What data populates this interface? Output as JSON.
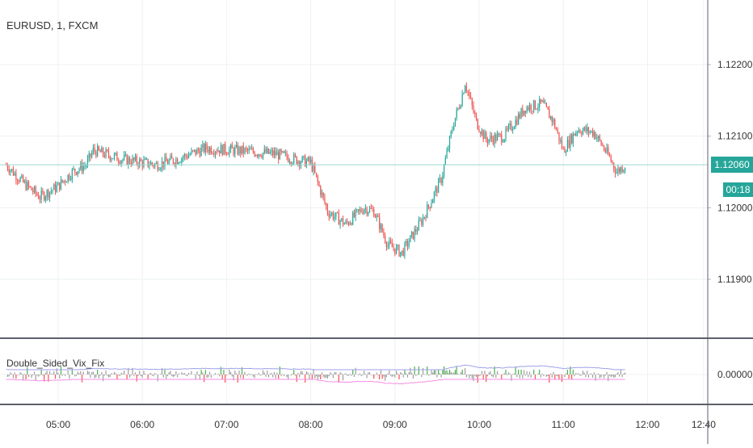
{
  "symbol_title": "EURUSD, 1, FXCM",
  "indicator_title": "Double_Sided_Vix_Fix",
  "current_price_label": "1.12060",
  "countdown_label": "00:18",
  "colors": {
    "up": "#26a69a",
    "down": "#ef5350",
    "price_line": "#9ad8d0",
    "grid": "#eef0f3",
    "separator": "#5d606b",
    "band_upper": "#9fa2e8",
    "band_lower": "#f48fe4",
    "hist_gray": "#9e9e9e",
    "hist_red": "#ff4d4d",
    "hist_green": "#4caf50"
  },
  "chart_data": [
    {
      "type": "candlestick",
      "title": "EURUSD, 1, FXCM",
      "x_tick_labels": [
        "05:00",
        "06:00",
        "07:00",
        "08:00",
        "09:00",
        "10:00",
        "11:00",
        "12:00",
        "12:40"
      ],
      "y_tick_labels": [
        "1.12200",
        "1.12100",
        "1.12000",
        "1.11900"
      ],
      "ylim": [
        1.1185,
        1.1227
      ],
      "last_price": 1.1206,
      "series": [
        {
          "keyframes": [
            {
              "t": "04:23",
              "v": 1.1206
            },
            {
              "t": "04:35",
              "v": 1.12035
            },
            {
              "t": "04:47",
              "v": 1.12015
            },
            {
              "t": "05:00",
              "v": 1.1203
            },
            {
              "t": "05:10",
              "v": 1.1205
            },
            {
              "t": "05:20",
              "v": 1.1206
            },
            {
              "t": "05:25",
              "v": 1.1208
            },
            {
              "t": "05:45",
              "v": 1.12068
            },
            {
              "t": "06:10",
              "v": 1.1206
            },
            {
              "t": "06:25",
              "v": 1.12068
            },
            {
              "t": "06:45",
              "v": 1.12083
            },
            {
              "t": "07:08",
              "v": 1.1208
            },
            {
              "t": "07:35",
              "v": 1.12075
            },
            {
              "t": "07:50",
              "v": 1.12067
            },
            {
              "t": "08:00",
              "v": 1.12063
            },
            {
              "t": "08:12",
              "v": 1.11995
            },
            {
              "t": "08:25",
              "v": 1.11977
            },
            {
              "t": "08:38",
              "v": 1.12
            },
            {
              "t": "08:45",
              "v": 1.11995
            },
            {
              "t": "08:55",
              "v": 1.11948
            },
            {
              "t": "09:05",
              "v": 1.11937
            },
            {
              "t": "09:20",
              "v": 1.11985
            },
            {
              "t": "09:33",
              "v": 1.1204
            },
            {
              "t": "09:42",
              "v": 1.1212
            },
            {
              "t": "09:47",
              "v": 1.1215
            },
            {
              "t": "09:50",
              "v": 1.12175
            },
            {
              "t": "09:58",
              "v": 1.1212
            },
            {
              "t": "10:05",
              "v": 1.12095
            },
            {
              "t": "10:18",
              "v": 1.121
            },
            {
              "t": "10:33",
              "v": 1.1214
            },
            {
              "t": "10:45",
              "v": 1.12145
            },
            {
              "t": "10:53",
              "v": 1.1212
            },
            {
              "t": "11:00",
              "v": 1.1208
            },
            {
              "t": "11:10",
              "v": 1.1211
            },
            {
              "t": "11:22",
              "v": 1.12105
            },
            {
              "t": "11:33",
              "v": 1.1207
            },
            {
              "t": "11:38",
              "v": 1.1205
            },
            {
              "t": "11:44",
              "v": 1.1206
            }
          ]
        }
      ]
    },
    {
      "type": "line+histogram",
      "title": "Double_Sided_Vix_Fix",
      "y_tick_labels": [
        "0.00000"
      ],
      "baseline": 0.0
    }
  ]
}
